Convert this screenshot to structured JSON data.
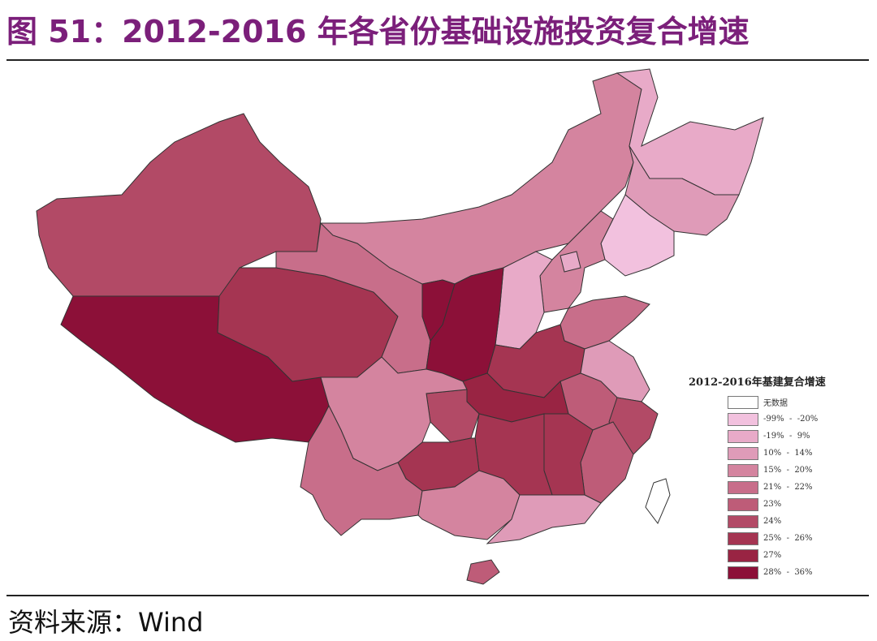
{
  "title": "图 51：2012-2016 年各省份基础设施投资复合增速",
  "source": "资料来源：Wind",
  "legend": {
    "title": "2012-2016年基建复合增速",
    "items": [
      {
        "label": "无数据",
        "color": "#ffffff"
      },
      {
        "label": "-99%  -  -20%",
        "color": "#f2c1de"
      },
      {
        "label": "-19%  -  9%",
        "color": "#e8aac8"
      },
      {
        "label": "10%  -  14%",
        "color": "#df9bb8"
      },
      {
        "label": "15%  -  20%",
        "color": "#d4849f"
      },
      {
        "label": "21%  -  22%",
        "color": "#c86e8a"
      },
      {
        "label": "23%",
        "color": "#be5c78"
      },
      {
        "label": "24%",
        "color": "#b24a66"
      },
      {
        "label": "25%  -  26%",
        "color": "#a53552"
      },
      {
        "label": "27%",
        "color": "#992443"
      },
      {
        "label": "28%  -  36%",
        "color": "#8c1038"
      }
    ]
  },
  "region_classes": {
    "xinjiang": 7,
    "tibet": 10,
    "qinghai": 8,
    "gansu": 5,
    "inner_mongolia": 4,
    "heilongjiang": 2,
    "jilin": 3,
    "liaoning": 1,
    "hebei": 4,
    "beijing": 2,
    "shanxi": 2,
    "shandong": 5,
    "henan": 8,
    "shaanxi": 10,
    "ningxia": 10,
    "jiangsu": 3,
    "anhui": 6,
    "zhejiang": 7,
    "fujian": 6,
    "jiangxi": 8,
    "hubei": 9,
    "chongqing": 7,
    "hunan": 8,
    "guizhou": 8,
    "sichuan": 4,
    "yunnan": 5,
    "guangxi": 4,
    "guangdong": 3,
    "hainan": 6,
    "taiwan": 0
  }
}
